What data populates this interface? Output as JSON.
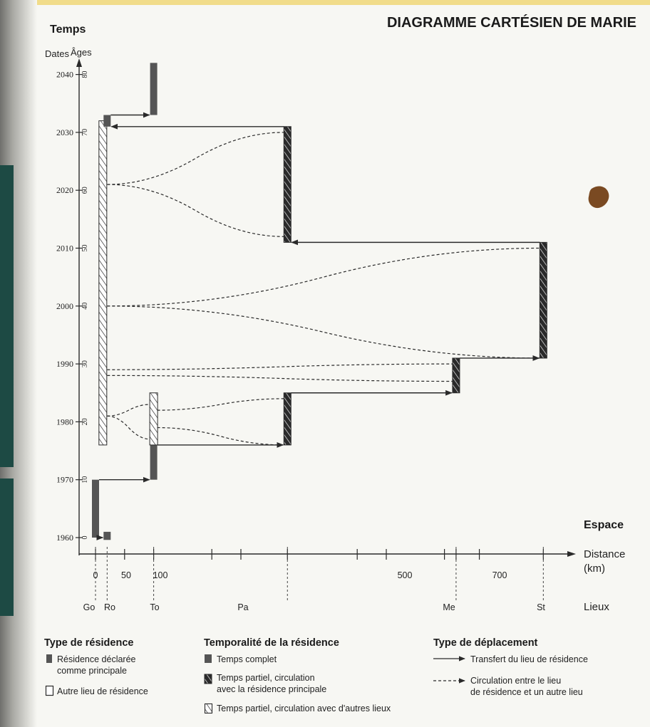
{
  "title": "DIAGRAMME CARTÉSIEN DE MARIE",
  "y_axis": {
    "title": "Temps",
    "dates_header": "Dates",
    "ages_header": "Âges",
    "dates": [
      "1960",
      "1970",
      "1980",
      "1990",
      "2000",
      "2010",
      "2020",
      "2030",
      "2040"
    ],
    "ages": [
      "0",
      "10",
      "20",
      "30",
      "40",
      "50",
      "60",
      "70",
      "80"
    ]
  },
  "x_axis": {
    "title": "Espace",
    "distance_label": "Distance",
    "unit_label": "(km)",
    "places_label": "Lieux",
    "ticks": [
      "0",
      "50",
      "100",
      "500",
      "700"
    ],
    "places": [
      "Go",
      "Ro",
      "To",
      "Pa",
      "Me",
      "St"
    ]
  },
  "legend": {
    "residence_type": {
      "title": "Type de résidence",
      "principal": "Résidence déclarée",
      "principal_line2": "comme principale",
      "other": "Autre lieu de résidence"
    },
    "temporality": {
      "title": "Temporalité de la résidence",
      "full": "Temps complet",
      "partial_main": "Temps partiel, circulation",
      "partial_main_line2": "avec la résidence principale",
      "partial_other": "Temps partiel, circulation avec d'autres lieux"
    },
    "movement": {
      "title": "Type de déplacement",
      "transfer": "Transfert du lieu de résidence",
      "circulation": "Circulation entre le lieu",
      "circulation_line2": "de résidence et un autre lieu"
    }
  },
  "chart_data": {
    "type": "cartesian-life-diagram",
    "places_km": {
      "Go": 0,
      "Ro": 20,
      "To": 100,
      "Pa": 330,
      "Me": 620,
      "St": 770
    },
    "residences": [
      {
        "place": "Go",
        "from": 1960,
        "to": 1970,
        "kind": "principal",
        "temporality": "full"
      },
      {
        "place": "Ro",
        "from": 1959.6,
        "to": 1961,
        "kind": "other",
        "temporality": "full"
      },
      {
        "place": "To",
        "from": 1970,
        "to": 1976,
        "kind": "principal",
        "temporality": "full"
      },
      {
        "place": "Ro",
        "from": 1976,
        "to": 2032,
        "kind": "other",
        "temporality": "partial-other"
      },
      {
        "place": "To",
        "from": 1976,
        "to": 1985,
        "kind": "other",
        "temporality": "partial-other"
      },
      {
        "place": "Pa",
        "from": 1976,
        "to": 1985,
        "kind": "principal",
        "temporality": "partial-main"
      },
      {
        "place": "Me",
        "from": 1985,
        "to": 1991,
        "kind": "principal",
        "temporality": "partial-main"
      },
      {
        "place": "St",
        "from": 1991,
        "to": 2011,
        "kind": "principal",
        "temporality": "partial-main"
      },
      {
        "place": "Pa",
        "from": 2011,
        "to": 2031,
        "kind": "principal",
        "temporality": "partial-main"
      },
      {
        "place": "Ro",
        "from": 2031,
        "to": 2033,
        "kind": "principal",
        "temporality": "full"
      },
      {
        "place": "To",
        "from": 2033,
        "to": 2042,
        "kind": "principal",
        "temporality": "full"
      }
    ],
    "transfers": [
      {
        "from": "Go",
        "to": "To",
        "year": 1970
      },
      {
        "from": "To",
        "to": "Pa",
        "year": 1976
      },
      {
        "from": "Pa",
        "to": "Me",
        "year": 1985
      },
      {
        "from": "Me",
        "to": "St",
        "year": 1991
      },
      {
        "from": "St",
        "to": "Pa",
        "year": 2011
      },
      {
        "from": "Pa",
        "to": "Ro",
        "year": 2031
      },
      {
        "from": "Ro",
        "to": "To",
        "year": 2033
      },
      {
        "from": "Go",
        "to": "Ro",
        "year": 1960
      }
    ],
    "circulations": [
      {
        "a": "Ro",
        "ay": 1981,
        "b": "To",
        "by": 1977
      },
      {
        "a": "Ro",
        "ay": 1981,
        "b": "To",
        "by": 1983
      },
      {
        "a": "To",
        "ay": 1979,
        "b": "Pa",
        "by": 1976
      },
      {
        "a": "To",
        "ay": 1982,
        "b": "Pa",
        "by": 1984
      },
      {
        "a": "Ro",
        "ay": 1989,
        "b": "Me",
        "by": 1990
      },
      {
        "a": "Ro",
        "ay": 1988,
        "b": "Me",
        "by": 1987
      },
      {
        "a": "Ro",
        "ay": 2000,
        "b": "St",
        "by": 2010
      },
      {
        "a": "Ro",
        "ay": 2000,
        "b": "St",
        "by": 1991
      },
      {
        "a": "Ro",
        "ay": 2021,
        "b": "Pa",
        "by": 2030
      },
      {
        "a": "Ro",
        "ay": 2021,
        "b": "Pa",
        "by": 2012
      }
    ]
  }
}
